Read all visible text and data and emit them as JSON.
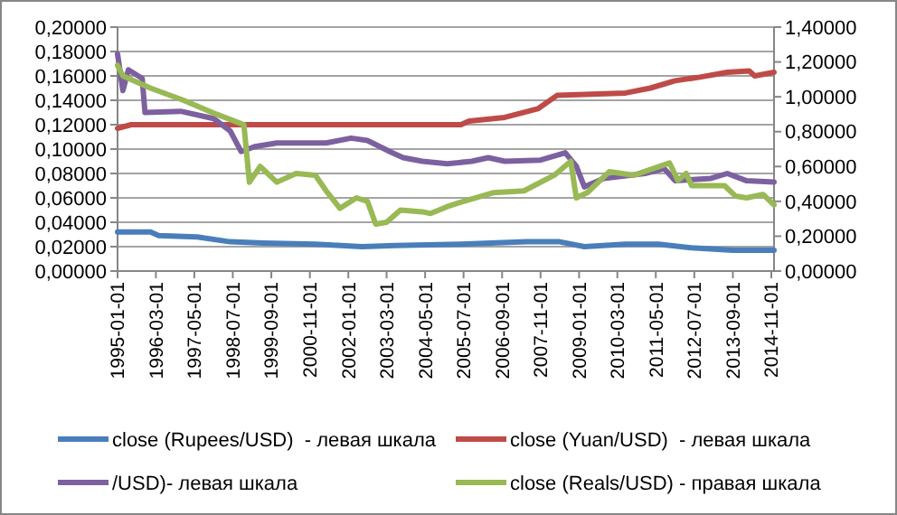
{
  "chart_data": {
    "type": "line",
    "xlim": [
      "1995-01",
      "2014-12"
    ],
    "xticks": [
      {
        "value": "1995-01",
        "label": "1995-01-01"
      },
      {
        "value": "1996-03",
        "label": "1996-03-01"
      },
      {
        "value": "1997-05",
        "label": "1997-05-01"
      },
      {
        "value": "1998-07",
        "label": "1998-07-01"
      },
      {
        "value": "1999-09",
        "label": "1999-09-01"
      },
      {
        "value": "2000-11",
        "label": "2000-11-01"
      },
      {
        "value": "2002-01",
        "label": "2002-01-01"
      },
      {
        "value": "2003-03",
        "label": "2003-03-01"
      },
      {
        "value": "2004-05",
        "label": "2004-05-01"
      },
      {
        "value": "2005-07",
        "label": "2005-07-01"
      },
      {
        "value": "2006-09",
        "label": "2006-09-01"
      },
      {
        "value": "2007-11",
        "label": "2007-11-01"
      },
      {
        "value": "2009-01",
        "label": "2009-01-01"
      },
      {
        "value": "2010-03",
        "label": "2010-03-01"
      },
      {
        "value": "2011-05",
        "label": "2011-05-01"
      },
      {
        "value": "2012-07",
        "label": "2012-07-01"
      },
      {
        "value": "2013-09",
        "label": "2013-09-01"
      },
      {
        "value": "2014-11",
        "label": "2014-11-01"
      }
    ],
    "ylim": [
      0,
      0.2
    ],
    "yticks": [
      {
        "value": 0,
        "label": "0,00000"
      },
      {
        "value": 0.02,
        "label": "0,02000"
      },
      {
        "value": 0.04,
        "label": "0,04000"
      },
      {
        "value": 0.06,
        "label": "0,06000"
      },
      {
        "value": 0.08,
        "label": "0,08000"
      },
      {
        "value": 0.1,
        "label": "0,10000"
      },
      {
        "value": 0.12,
        "label": "0,12000"
      },
      {
        "value": 0.14,
        "label": "0,14000"
      },
      {
        "value": 0.16,
        "label": "0,16000"
      },
      {
        "value": 0.18,
        "label": "0,18000"
      },
      {
        "value": 0.2,
        "label": "0,20000"
      }
    ],
    "y2lim": [
      0,
      1.4
    ],
    "y2ticks": [
      {
        "value": 0,
        "label": "0,00000"
      },
      {
        "value": 0.2,
        "label": "0,20000"
      },
      {
        "value": 0.4,
        "label": "0,40000"
      },
      {
        "value": 0.6,
        "label": "0,60000"
      },
      {
        "value": 0.8,
        "label": "0,80000"
      },
      {
        "value": 1.0,
        "label": "1,00000"
      },
      {
        "value": 1.2,
        "label": "1,20000"
      },
      {
        "value": 1.4,
        "label": "1,40000"
      }
    ],
    "grid": "y",
    "legend": "bottom",
    "line_style": "solid",
    "series": [
      {
        "name": "close (Rupees/USD)  - левая шкала",
        "color": "#4a7ebb",
        "x": [
          "1995-01",
          "1996-01",
          "1996-04",
          "1997-06",
          "1998-06",
          "1999-06",
          "2001-01",
          "2002-06",
          "2003-06",
          "2005-06",
          "2007-06",
          "2008-06",
          "2009-03",
          "2010-06",
          "2011-06",
          "2012-06",
          "2013-09",
          "2014-12"
        ],
        "values": [
          0.032,
          0.032,
          0.029,
          0.028,
          0.024,
          0.023,
          0.022,
          0.02,
          0.021,
          0.022,
          0.024,
          0.024,
          0.02,
          0.022,
          0.022,
          0.019,
          0.017,
          0.017
        ]
      },
      {
        "name": "close (Yuan/USD)  - левая шкала",
        "color": "#be4b48",
        "x": [
          "1995-01",
          "1995-06",
          "2005-06",
          "2005-09",
          "2006-10",
          "2007-10",
          "2008-05",
          "2010-06",
          "2011-03",
          "2011-12",
          "2012-09",
          "2013-07",
          "2014-03",
          "2014-05",
          "2014-12"
        ],
        "values": [
          0.117,
          0.12,
          0.12,
          0.123,
          0.126,
          0.133,
          0.144,
          0.146,
          0.15,
          0.156,
          0.159,
          0.163,
          0.164,
          0.16,
          0.163
        ]
      },
      {
        "name": "/USD)- левая шкала",
        "color": "#7d60a0",
        "x": [
          "1995-01",
          "1995-03",
          "1995-05",
          "1995-10",
          "1995-11",
          "1996-12",
          "1997-12",
          "1998-06",
          "1998-10",
          "1999-03",
          "1999-11",
          "2000-08",
          "2001-05",
          "2002-02",
          "2002-08",
          "2003-05",
          "2003-09",
          "2004-04",
          "2005-01",
          "2005-10",
          "2006-04",
          "2006-10",
          "2007-11",
          "2008-08",
          "2008-12",
          "2009-03",
          "2009-10",
          "2011-01",
          "2011-08",
          "2011-12",
          "2013-01",
          "2013-07",
          "2014-02",
          "2014-12"
        ],
        "values": [
          0.178,
          0.148,
          0.165,
          0.158,
          0.13,
          0.131,
          0.125,
          0.115,
          0.098,
          0.102,
          0.105,
          0.105,
          0.105,
          0.109,
          0.107,
          0.097,
          0.093,
          0.09,
          0.088,
          0.09,
          0.093,
          0.09,
          0.091,
          0.097,
          0.086,
          0.069,
          0.076,
          0.08,
          0.084,
          0.074,
          0.076,
          0.08,
          0.074,
          0.073
        ]
      },
      {
        "name": "close (Reals/USD) - правая шкала",
        "color": "#98b954",
        "axis": "y2",
        "x": [
          "1995-01",
          "1995-03",
          "1996-01",
          "1997-01",
          "1998-01",
          "1998-11",
          "1999-01",
          "1999-05",
          "1999-11",
          "2000-06",
          "2001-01",
          "2001-05",
          "2001-10",
          "2002-04",
          "2002-08",
          "2002-11",
          "2003-03",
          "2003-08",
          "2004-04",
          "2004-07",
          "2005-01",
          "2005-07",
          "2006-06",
          "2007-05",
          "2008-04",
          "2008-10",
          "2008-12",
          "2009-04",
          "2009-12",
          "2010-09",
          "2011-10",
          "2012-01",
          "2012-04",
          "2012-06",
          "2013-06",
          "2013-10",
          "2014-02",
          "2014-08",
          "2014-12"
        ],
        "values": [
          1.18,
          1.12,
          1.05,
          0.98,
          0.9,
          0.84,
          0.51,
          0.6,
          0.51,
          0.56,
          0.55,
          0.46,
          0.36,
          0.42,
          0.4,
          0.27,
          0.28,
          0.35,
          0.34,
          0.33,
          0.37,
          0.4,
          0.45,
          0.46,
          0.55,
          0.63,
          0.42,
          0.45,
          0.57,
          0.55,
          0.62,
          0.52,
          0.56,
          0.49,
          0.49,
          0.43,
          0.42,
          0.44,
          0.38
        ]
      }
    ]
  }
}
